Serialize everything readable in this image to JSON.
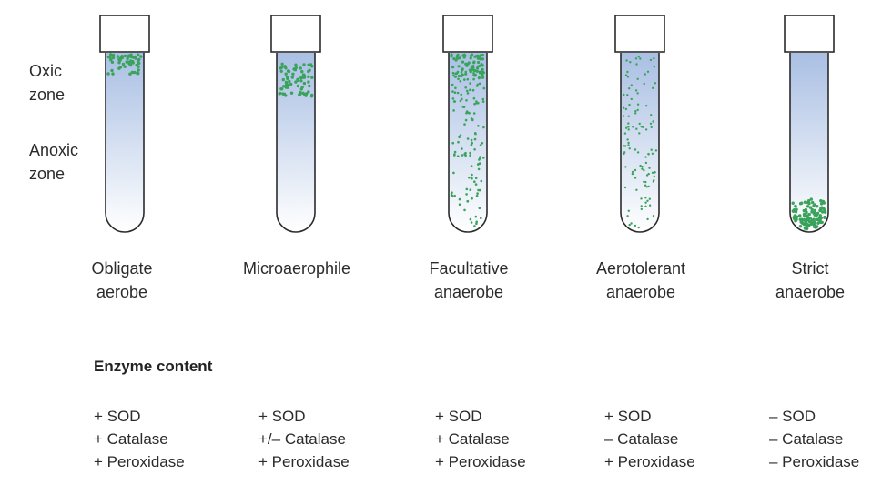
{
  "zones": {
    "oxic": [
      "Oxic",
      "zone"
    ],
    "anoxic": [
      "Anoxic",
      "zone"
    ]
  },
  "colors": {
    "bacteria": "#3aa35b",
    "medium_top": "#a9bfe3",
    "medium_bottom": "#ffffff",
    "outline": "#2b2b2b"
  },
  "tubes": [
    {
      "name": [
        "Obligate",
        "aerobe"
      ],
      "growth": "surface"
    },
    {
      "name": [
        "Microaerophile",
        ""
      ],
      "growth": "subsurface-band"
    },
    {
      "name": [
        "Facultative",
        "anaerobe"
      ],
      "growth": "throughout-dense-top"
    },
    {
      "name": [
        "Aerotolerant",
        "anaerobe"
      ],
      "growth": "evenly-throughout"
    },
    {
      "name": [
        "Strict",
        "anaerobe"
      ],
      "growth": "bottom"
    }
  ],
  "enzymes": {
    "heading": "Enzyme content",
    "columns": [
      [
        "+ SOD",
        "+ Catalase",
        "+ Peroxidase"
      ],
      [
        "+ SOD",
        "+/– Catalase",
        "+ Peroxidase"
      ],
      [
        "+ SOD",
        "+ Catalase",
        "+ Peroxidase"
      ],
      [
        "+ SOD",
        "– Catalase",
        "+ Peroxidase"
      ],
      [
        "– SOD",
        "– Catalase",
        "– Peroxidase"
      ]
    ]
  }
}
